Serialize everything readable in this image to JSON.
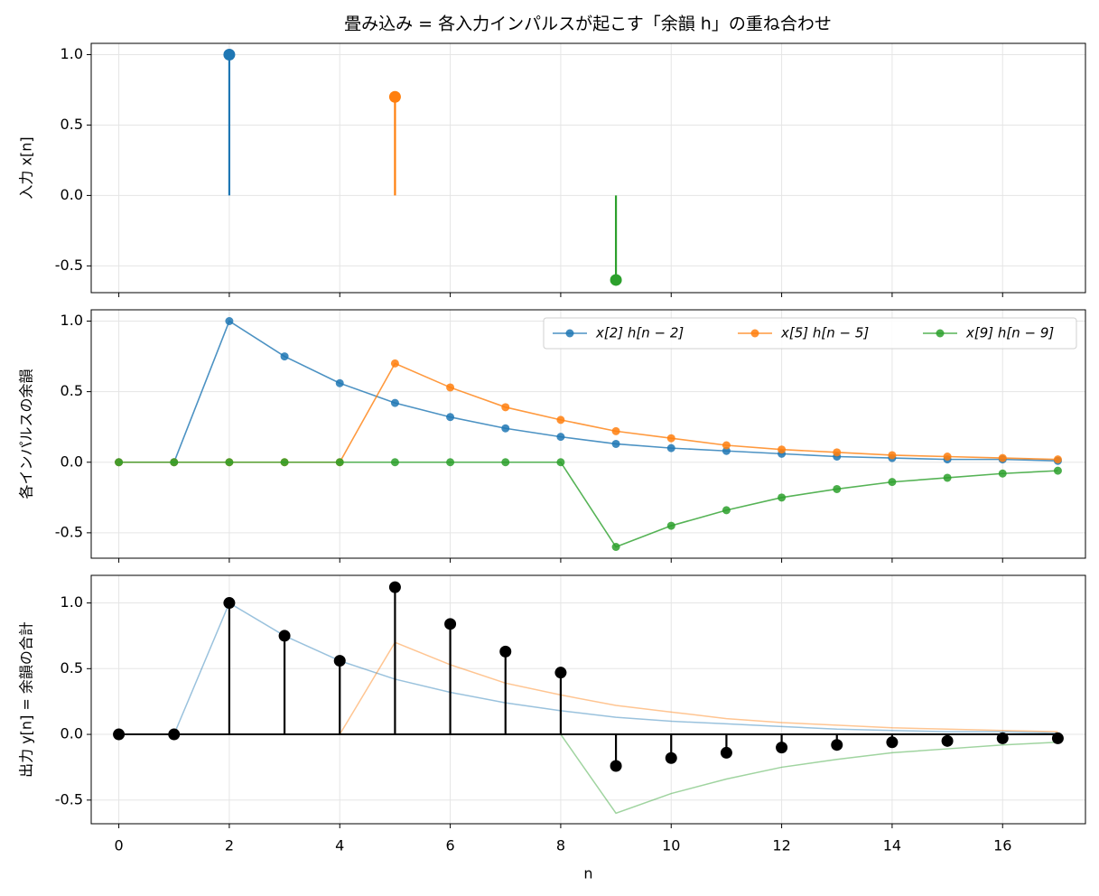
{
  "chart_data": [
    {
      "type": "stem",
      "title": "畳み込み = 各入力インパルスが起こす「余韻 h」の重ね合わせ",
      "ylabel": "入力 x[n]",
      "x": [
        2,
        5,
        9
      ],
      "values": [
        1,
        0.7,
        -0.6
      ],
      "colors": [
        "#1f77b4",
        "#ff7f0e",
        "#2ca02c"
      ],
      "xlim": [
        -0.5,
        17.5
      ],
      "xticks": [
        0,
        2,
        4,
        6,
        8,
        10,
        12,
        14,
        16
      ],
      "ylim": [
        -0.69,
        1.08
      ],
      "yticks": [
        -0.5,
        {
          "value": 0,
          "label": "0.0"
        },
        0.5,
        {
          "value": 1,
          "label": "1.0"
        }
      ],
      "grid": true
    },
    {
      "type": "line",
      "ylabel": "各インパルスの余韻",
      "x": [
        0,
        1,
        2,
        3,
        4,
        5,
        6,
        7,
        8,
        9,
        10,
        11,
        12,
        13,
        14,
        15,
        16,
        17
      ],
      "series": [
        {
          "name": "x[2] h[n − 2]",
          "color": "#1f77b4",
          "values": [
            0,
            0,
            1,
            0.75,
            0.56,
            0.42,
            0.32,
            0.24,
            0.18,
            0.13,
            0.1,
            0.08,
            0.06,
            0.04,
            0.03,
            0.02,
            0.02,
            0.01
          ]
        },
        {
          "name": "x[5] h[n − 5]",
          "color": "#ff7f0e",
          "values": [
            0,
            0,
            0,
            0,
            0,
            0.7,
            0.53,
            0.39,
            0.3,
            0.22,
            0.17,
            0.12,
            0.09,
            0.07,
            0.05,
            0.04,
            0.03,
            0.02
          ]
        },
        {
          "name": "x[9] h[n − 9]",
          "color": "#2ca02c",
          "values": [
            0,
            0,
            0,
            0,
            0,
            0,
            0,
            0,
            0,
            -0.6,
            -0.45,
            -0.34,
            -0.25,
            -0.19,
            -0.14,
            -0.11,
            -0.08,
            -0.06
          ]
        }
      ],
      "legend": "upper right",
      "xlim": [
        -0.5,
        17.5
      ],
      "xticks": [
        0,
        2,
        4,
        6,
        8,
        10,
        12,
        14,
        16
      ],
      "ylim": [
        -0.68,
        1.08
      ],
      "yticks": [
        -0.5,
        {
          "value": 0,
          "label": "0.0"
        },
        0.5,
        {
          "value": 1,
          "label": "1.0"
        }
      ],
      "grid": true
    },
    {
      "type": "stem",
      "ylabel": "出力 y[n] = 余韻の合計",
      "xlabel": "n",
      "x": [
        0,
        1,
        2,
        3,
        4,
        5,
        6,
        7,
        8,
        9,
        10,
        11,
        12,
        13,
        14,
        15,
        16,
        17
      ],
      "values": [
        0,
        0,
        1,
        0.75,
        0.56,
        1.12,
        0.84,
        0.63,
        0.47,
        -0.24,
        -0.18,
        -0.14,
        -0.1,
        -0.08,
        -0.06,
        -0.05,
        -0.03,
        -0.03
      ],
      "color": "#000000",
      "baseline": true,
      "xlim": [
        -0.5,
        17.5
      ],
      "xticks": [
        0,
        2,
        4,
        6,
        8,
        10,
        12,
        14,
        16
      ],
      "ylim": [
        -0.68,
        1.21
      ],
      "yticks": [
        -0.5,
        {
          "value": 0,
          "label": "0.0"
        },
        0.5,
        {
          "value": 1,
          "label": "1.0"
        }
      ],
      "grid": true
    }
  ]
}
